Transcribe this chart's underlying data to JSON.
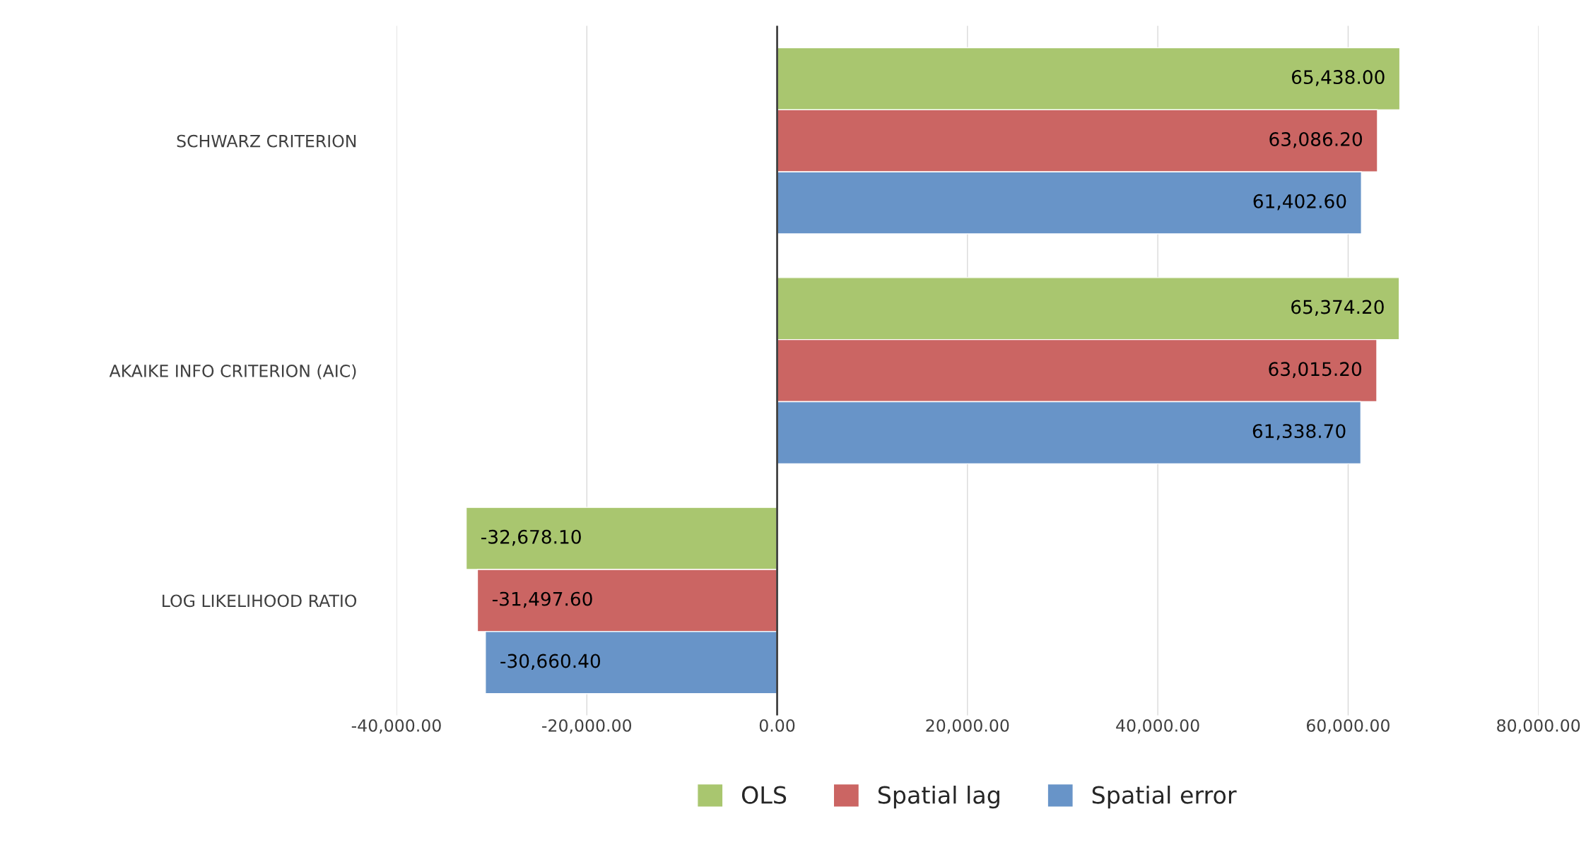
{
  "chart_data": {
    "type": "bar",
    "orientation": "horizontal",
    "categories": [
      "SCHWARZ CRITERION",
      "AKAIKE INFO CRITERION (AIC)",
      "LOG LIKELIHOOD RATIO"
    ],
    "series": [
      {
        "name": "OLS",
        "color": "#a9c66f",
        "values": [
          65438.0,
          65374.2,
          -32678.1
        ],
        "value_labels": [
          "65,438.00",
          "65,374.20",
          "-32,678.10"
        ]
      },
      {
        "name": "Spatial lag",
        "color": "#cb6563",
        "values": [
          63086.2,
          63015.2,
          -31497.6
        ],
        "value_labels": [
          "63,086.20",
          "63,015.20",
          "-31,497.60"
        ]
      },
      {
        "name": "Spatial error",
        "color": "#6894c8",
        "values": [
          61402.6,
          61338.7,
          -30660.4
        ],
        "value_labels": [
          "61,402.60",
          "61,338.70",
          "-30,660.40"
        ]
      }
    ],
    "xlim": [
      -40000,
      80000
    ],
    "xticks": [
      {
        "value": -40000,
        "label": "-40,000.00"
      },
      {
        "value": -20000,
        "label": "-20,000.00"
      },
      {
        "value": 0,
        "label": "0.00"
      },
      {
        "value": 20000,
        "label": "20,000.00"
      },
      {
        "value": 40000,
        "label": "40,000.00"
      },
      {
        "value": 60000,
        "label": "60,000.00"
      },
      {
        "value": 80000,
        "label": "80,000.00"
      }
    ],
    "grid": "x",
    "legend": "bottom"
  }
}
